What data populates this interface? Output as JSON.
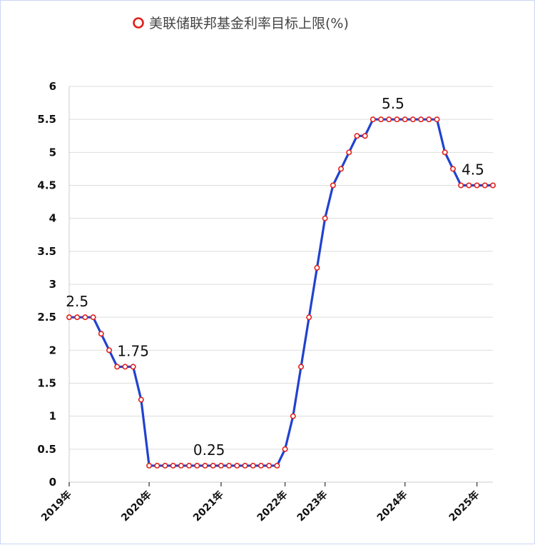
{
  "chart_data": {
    "type": "line",
    "title": "美联储联邦基金利率目标上限(%)",
    "legend": {
      "placement": "top-center",
      "marker": "hollow-circle"
    },
    "colors": {
      "line": "#2142cf",
      "marker_edge": "#e0211b",
      "marker_fill": "#ffffff",
      "grid": "#dddddd"
    },
    "ylim": [
      0,
      6
    ],
    "y_ticks": [
      "0",
      "0.5",
      "1",
      "1.5",
      "2",
      "2.5",
      "3",
      "3.5",
      "4",
      "4.5",
      "5",
      "5.5",
      "6"
    ],
    "x_tick_labels": [
      {
        "label": "2019年",
        "x": 0
      },
      {
        "label": "2020年",
        "x": 10
      },
      {
        "label": "2021年",
        "x": 19
      },
      {
        "label": "2022年",
        "x": 27
      },
      {
        "label": "2023年",
        "x": 32
      },
      {
        "label": "2024年",
        "x": 42
      },
      {
        "label": "2025年",
        "x": 51
      }
    ],
    "series": [
      {
        "values": [
          2.5,
          2.5,
          2.5,
          2.5,
          2.25,
          2.0,
          1.75,
          1.75,
          1.75,
          1.25,
          0.25,
          0.25,
          0.25,
          0.25,
          0.25,
          0.25,
          0.25,
          0.25,
          0.25,
          0.25,
          0.25,
          0.25,
          0.25,
          0.25,
          0.25,
          0.25,
          0.25,
          0.5,
          1.0,
          1.75,
          2.5,
          3.25,
          4.0,
          4.5,
          4.75,
          5.0,
          5.25,
          5.25,
          5.5,
          5.5,
          5.5,
          5.5,
          5.5,
          5.5,
          5.5,
          5.5,
          5.5,
          5.0,
          4.75,
          4.5,
          4.5,
          4.5,
          4.5,
          4.5
        ]
      }
    ],
    "annotations": [
      {
        "text": "2.5",
        "x": 1,
        "y": 2.5
      },
      {
        "text": "1.75",
        "x": 8,
        "y": 1.75
      },
      {
        "text": "0.25",
        "x": 17.5,
        "y": 0.25
      },
      {
        "text": "5.5",
        "x": 40.5,
        "y": 5.5
      },
      {
        "text": "4.5",
        "x": 50.5,
        "y": 4.5
      }
    ]
  }
}
